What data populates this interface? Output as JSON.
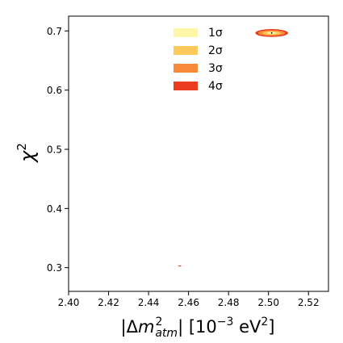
{
  "chart_data": {
    "type": "contour",
    "title": "",
    "xlabel_parts": {
      "bar_left": "|Δ",
      "m": "m",
      "sup": "2",
      "sub": "atm",
      "bar_right": "| [10",
      "exp": "−3",
      "unit": " eV",
      "unit_sup": "2",
      "close": "]"
    },
    "ylabel_parts": {
      "base": "χ",
      "sup": "2"
    },
    "xlim": [
      2.4,
      2.53
    ],
    "ylim": [
      0.26,
      0.725
    ],
    "x_ticks": [
      "2.40",
      "2.42",
      "2.44",
      "2.46",
      "2.48",
      "2.50",
      "2.52"
    ],
    "x_tick_values": [
      2.4,
      2.42,
      2.44,
      2.46,
      2.48,
      2.5,
      2.52
    ],
    "y_ticks": [
      "0.3",
      "0.4",
      "0.5",
      "0.6",
      "0.7"
    ],
    "y_tick_values": [
      0.3,
      0.4,
      0.5,
      0.6,
      0.7
    ],
    "grid": false,
    "legend_placement": "top-center",
    "legend": [
      {
        "label": "1σ",
        "color": "#fff7a8"
      },
      {
        "label": "2σ",
        "color": "#fdc95b"
      },
      {
        "label": "3σ",
        "color": "#f98a3a"
      },
      {
        "label": "4σ",
        "color": "#ec3c1f"
      }
    ],
    "regions": [
      {
        "name": "main-island",
        "center": {
          "x": 2.5016,
          "y": 0.6965
        },
        "levels": [
          {
            "sigma": "4σ",
            "half_width_x": 0.0082,
            "half_height_y": 0.0066
          },
          {
            "sigma": "3σ",
            "half_width_x": 0.0068,
            "half_height_y": 0.0048
          },
          {
            "sigma": "2σ",
            "half_width_x": 0.0046,
            "half_height_y": 0.0031
          },
          {
            "sigma": "1σ",
            "half_width_x": 0.0022,
            "half_height_y": 0.0016
          }
        ],
        "best_fit": {
          "x": 2.5016,
          "y": 0.6965
        }
      },
      {
        "name": "small-island",
        "center": {
          "x": 2.4556,
          "y": 0.303
        },
        "levels": [
          {
            "sigma": "4σ",
            "half_width_x": 0.0008,
            "half_height_y": 0.0008
          }
        ]
      }
    ]
  }
}
